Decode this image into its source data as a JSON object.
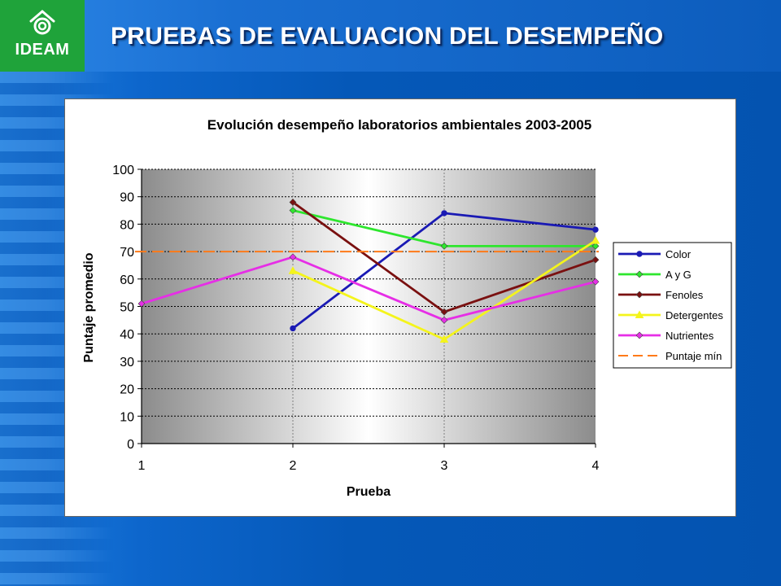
{
  "header": {
    "title": "PRUEBAS DE EVALUACION DEL DESEMPEÑO",
    "logo_text": "IDEAM",
    "colors": {
      "logo_bg": "#1fa33a",
      "slide_bg": "#0558b8"
    }
  },
  "chart_data": {
    "type": "line",
    "title": "Evolución desempeño laboratorios ambientales 2003-2005",
    "xlabel": "Prueba",
    "ylabel": "Puntaje promedio",
    "x": [
      1,
      2,
      3,
      4
    ],
    "x_ticks": [
      "1",
      "2",
      "3",
      "4"
    ],
    "y_ticks": [
      "0",
      "10",
      "20",
      "30",
      "40",
      "50",
      "60",
      "70",
      "80",
      "90",
      "100"
    ],
    "ylim": [
      0,
      100
    ],
    "grid": true,
    "legend_position": "right",
    "series": [
      {
        "name": "Color",
        "color": "#1a1ab4",
        "marker": "circle",
        "values": [
          null,
          42,
          84,
          78
        ]
      },
      {
        "name": "A y G",
        "color": "#2ee62e",
        "marker": "diamond",
        "values": [
          null,
          85,
          72,
          72
        ]
      },
      {
        "name": "Fenoles",
        "color": "#7a1010",
        "marker": "diamond",
        "values": [
          null,
          88,
          48,
          67
        ]
      },
      {
        "name": "Detergentes",
        "color": "#f4f41c",
        "marker": "triangle",
        "values": [
          null,
          63,
          38,
          74
        ]
      },
      {
        "name": "Nutrientes",
        "color": "#e62ee6",
        "marker": "diamond",
        "values": [
          51,
          68,
          45,
          59
        ]
      },
      {
        "name": "Puntaje mín",
        "color": "#ff7a18",
        "style": "dashed",
        "values": [
          70,
          70,
          70,
          70
        ]
      }
    ]
  }
}
